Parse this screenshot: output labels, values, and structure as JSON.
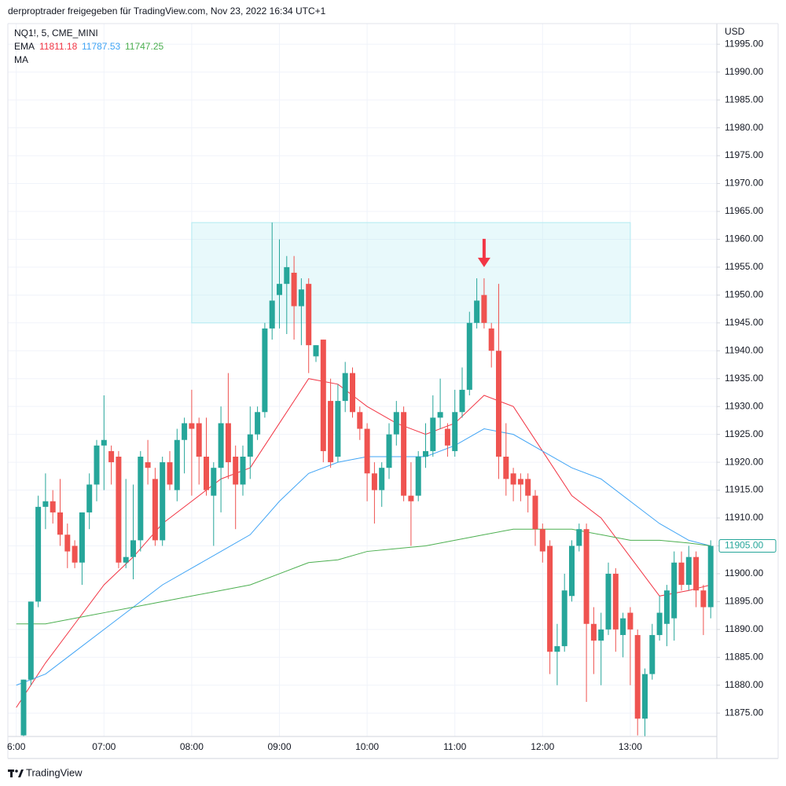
{
  "header": {
    "text": "derproptrader freigegeben für TradingView.com, Nov 23, 2022 16:34 UTC+1"
  },
  "footer": {
    "brand": "TradingView"
  },
  "chart_data": {
    "type": "candlestick",
    "legend": {
      "symbol": "NQ1!, 5, CME_MINI",
      "ema_label": "EMA",
      "ema_values": [
        "11811.18",
        "11787.53",
        "11747.25"
      ],
      "ma_label": "MA"
    },
    "currency": "USD",
    "up_color": "#26a69a",
    "down_color": "#ef5350",
    "categories": [
      "6:00",
      null,
      null,
      null,
      null,
      null,
      null,
      null,
      null,
      null,
      null,
      null,
      "07:00",
      null,
      null,
      null,
      null,
      null,
      null,
      null,
      null,
      null,
      null,
      null,
      "08:00",
      null,
      null,
      null,
      null,
      null,
      null,
      null,
      null,
      null,
      null,
      null,
      "09:00",
      null,
      null,
      null,
      null,
      null,
      null,
      null,
      null,
      null,
      null,
      null,
      "10:00",
      null,
      null,
      null,
      null,
      null,
      null,
      null,
      null,
      null,
      null,
      null,
      "11:00",
      null,
      null,
      null,
      null,
      null,
      null,
      null,
      null,
      null,
      null,
      null,
      "12:00",
      null,
      null,
      null,
      null,
      null,
      null,
      null,
      null,
      null,
      null,
      null,
      "13:00",
      null,
      null,
      null,
      null,
      null,
      null,
      null,
      null,
      null,
      null,
      null
    ],
    "open": [
      null,
      11871,
      11881,
      11895,
      11912,
      11913,
      11911,
      11907,
      11905,
      11902,
      11911,
      11916,
      11923,
      11922,
      11921,
      11902,
      11903,
      11906,
      11920,
      11917,
      11906,
      11920,
      11915,
      11924,
      11927,
      11927,
      11921,
      11914,
      11919,
      11927,
      11921,
      11916,
      11921,
      11925,
      11929,
      11944,
      11950,
      11952,
      11954,
      11948,
      11952,
      11939,
      11942,
      11931,
      11921,
      11931,
      11936,
      11929,
      11926,
      11918,
      11915,
      11919,
      11925,
      11929,
      11914,
      11914,
      11921,
      11922,
      11928,
      11926,
      11922,
      11929,
      11933,
      11945,
      11950,
      11944,
      11940,
      11921,
      11918,
      11917,
      11917,
      11914,
      11908,
      11905,
      11886,
      11887,
      11896,
      11905,
      11908,
      11891,
      11888,
      11890,
      11900,
      11889,
      11893,
      11889,
      11874,
      11882,
      11889,
      11891,
      11892,
      11902,
      11898,
      11903,
      11897,
      11894
    ],
    "high": [
      null,
      11881,
      11895,
      11914,
      11918,
      11915,
      11917,
      11909,
      11906,
      11911,
      11918,
      11924,
      11932,
      11923,
      11922,
      11917,
      11916,
      11922,
      11924,
      11919,
      11921,
      11922,
      11926,
      11928,
      11933,
      11928,
      11928,
      11920,
      11930,
      11936,
      11923,
      11923,
      11930,
      11930,
      11945,
      11963,
      11960,
      11957,
      11957,
      11953,
      11953,
      11941,
      11942,
      11935,
      11934,
      11938,
      11937,
      11930,
      11927,
      11920,
      11920,
      11927,
      11931,
      11930,
      11920,
      11922,
      11927,
      11932,
      11935,
      11927,
      11933,
      11937,
      11947,
      11953,
      11953,
      11945,
      11952,
      11927,
      11919,
      11918,
      11918,
      11915,
      11909,
      11906,
      11891,
      11900,
      11906,
      11909,
      11909,
      11894,
      11893,
      11902,
      11901,
      11893,
      11894,
      11890,
      11883,
      11891,
      11896,
      11898,
      11904,
      11904,
      11905,
      11904,
      11898,
      11906
    ],
    "low": [
      null,
      11868,
      11880,
      11894,
      11908,
      11909,
      11905,
      11901,
      11901,
      11898,
      11908,
      11913,
      11915,
      11916,
      11901,
      11901,
      11899,
      11904,
      11916,
      11905,
      11905,
      11915,
      11913,
      11918,
      11914,
      11916,
      11914,
      11905,
      11911,
      11917,
      11908,
      11914,
      11917,
      11924,
      11928,
      11942,
      11944,
      11943,
      11942,
      11941,
      11936,
      11938,
      11920,
      11919,
      11920,
      11929,
      11928,
      11924,
      11913,
      11909,
      11912,
      11917,
      11923,
      11913,
      11905,
      11913,
      11919,
      11921,
      11926,
      11921,
      11921,
      11928,
      11932,
      11944,
      11944,
      11937,
      11917,
      11914,
      11913,
      11913,
      11911,
      11905,
      11902,
      11882,
      11880,
      11886,
      11895,
      11904,
      11877,
      11882,
      11880,
      11889,
      11886,
      11885,
      11880,
      11871,
      11870,
      11881,
      11888,
      11887,
      11888,
      11897,
      11897,
      11894,
      11889,
      11892
    ],
    "close": [
      null,
      11881,
      11895,
      11912,
      11913,
      11911,
      11907,
      11904,
      11902,
      11911,
      11916,
      11923,
      11924,
      11920,
      11902,
      11903,
      11906,
      11921,
      11919,
      11906,
      11920,
      11916,
      11924,
      11927,
      11926,
      11921,
      11915,
      11919,
      11927,
      11920,
      11916,
      11921,
      11925,
      11929,
      11944,
      11949,
      11952,
      11955,
      11948,
      11951,
      11941,
      11941,
      11922,
      11920,
      11931,
      11936,
      11929,
      11926,
      11918,
      11915,
      11919,
      11925,
      11929,
      11914,
      11913,
      11921,
      11922,
      11928,
      11929,
      11923,
      11929,
      11933,
      11945,
      11949,
      11945,
      11940,
      11921,
      11917,
      11916,
      11916,
      11914,
      11908,
      11904,
      11886,
      11887,
      11897,
      11905,
      11908,
      11891,
      11888,
      11890,
      11900,
      11890,
      11892,
      11890,
      11874,
      11882,
      11889,
      11893,
      11897,
      11902,
      11898,
      11903,
      11897,
      11894,
      11905
    ],
    "overlays": [
      {
        "color": "#f23645",
        "x": [
          0,
          4,
          8,
          12,
          16,
          20,
          24,
          28,
          32,
          36,
          40,
          44,
          48,
          52,
          56,
          60,
          64,
          68,
          72,
          76,
          80,
          84,
          88,
          92,
          95
        ],
        "values": [
          11876,
          11884,
          11891,
          11898,
          11903,
          11909,
          11913,
          11917,
          11919,
          11927,
          11935,
          11934,
          11930,
          11927,
          11925,
          11927,
          11932,
          11930,
          11922,
          11914,
          11910,
          11903,
          11896,
          11897,
          11898
        ]
      },
      {
        "color": "#42a5f5",
        "x": [
          0,
          4,
          8,
          12,
          16,
          20,
          24,
          28,
          32,
          36,
          40,
          44,
          48,
          52,
          56,
          60,
          64,
          68,
          72,
          76,
          80,
          84,
          88,
          92,
          95
        ],
        "values": [
          11880,
          11882,
          11886,
          11890,
          11894,
          11898,
          11901,
          11904,
          11907,
          11913,
          11918,
          11920,
          11921,
          11921,
          11921,
          11923,
          11926,
          11925,
          11922,
          11919,
          11917,
          11913,
          11909,
          11906,
          11905
        ]
      },
      {
        "color": "#4caf50",
        "x": [
          0,
          4,
          8,
          12,
          16,
          20,
          24,
          28,
          32,
          36,
          40,
          44,
          48,
          52,
          56,
          60,
          64,
          68,
          72,
          76,
          80,
          84,
          88,
          92,
          95
        ],
        "values": [
          11891,
          11891,
          11892,
          11893,
          11894,
          11895,
          11896,
          11897,
          11898,
          11900,
          11902,
          11902.5,
          11904,
          11904.5,
          11905,
          11906,
          11907,
          11908,
          11908,
          11908,
          11907,
          11906,
          11906,
          11905.5,
          11905
        ]
      }
    ],
    "zone": {
      "x": [
        24,
        84
      ],
      "y": [
        11945,
        11963
      ],
      "color": "#b2ebf2"
    },
    "arrow": {
      "x": 64,
      "y": 11955,
      "color": "#f23645"
    },
    "last_price": {
      "value": 11905,
      "label": "11905.00",
      "color": "#26a69a"
    },
    "ylim": [
      11870.8,
      11998.7
    ],
    "yticks": [
      {
        "value": 11875,
        "label": "11875.00"
      },
      {
        "value": 11880,
        "label": "11880.00"
      },
      {
        "value": 11885,
        "label": "11885.00"
      },
      {
        "value": 11890,
        "label": "11890.00"
      },
      {
        "value": 11895,
        "label": "11895.00"
      },
      {
        "value": 11900,
        "label": "11900.00"
      },
      {
        "value": 11905,
        "label": "11905.00"
      },
      {
        "value": 11910,
        "label": "11910.00"
      },
      {
        "value": 11915,
        "label": "11915.00"
      },
      {
        "value": 11920,
        "label": "11920.00"
      },
      {
        "value": 11925,
        "label": "11925.00"
      },
      {
        "value": 11930,
        "label": "11930.00"
      },
      {
        "value": 11935,
        "label": "11935.00"
      },
      {
        "value": 11940,
        "label": "11940.00"
      },
      {
        "value": 11945,
        "label": "11945.00"
      },
      {
        "value": 11950,
        "label": "11950.00"
      },
      {
        "value": 11955,
        "label": "11955.00"
      },
      {
        "value": 11960,
        "label": "11960.00"
      },
      {
        "value": 11965,
        "label": "11965.00"
      },
      {
        "value": 11970,
        "label": "11970.00"
      },
      {
        "value": 11975,
        "label": "11975.00"
      },
      {
        "value": 11980,
        "label": "11980.00"
      },
      {
        "value": 11985,
        "label": "11985.00"
      },
      {
        "value": 11990,
        "label": "11990.00"
      },
      {
        "value": 11995,
        "label": "11995.00"
      }
    ],
    "grid": true
  }
}
